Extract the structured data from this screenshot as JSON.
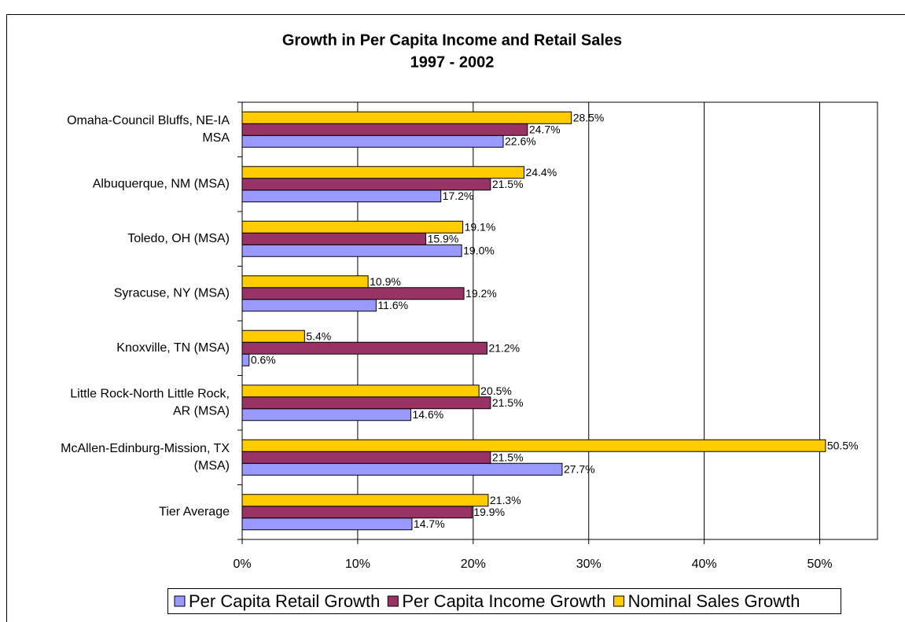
{
  "chart_data": {
    "type": "hbar",
    "title": "Growth in Per Capita Income and Retail Sales",
    "subtitle": "1997 - 2002",
    "categories": [
      "Omaha-Council Bluffs, NE-IA\nMSA",
      "Albuquerque, NM (MSA)",
      "Toledo, OH (MSA)",
      "Syracuse, NY (MSA)",
      "Knoxville, TN (MSA)",
      "Little Rock-North Little Rock,\nAR (MSA)",
      "McAllen-Edinburg-Mission, TX\n(MSA)",
      "Tier Average"
    ],
    "series": [
      {
        "name": "Per Capita Retail Growth",
        "color": "#9999ff",
        "values": [
          22.6,
          17.2,
          19.0,
          11.6,
          0.6,
          14.6,
          27.7,
          14.7
        ],
        "value_labels": [
          "22.6%",
          "17.2%",
          "19.0%",
          "11.6%",
          "0.6%",
          "14.6%",
          "27.7%",
          "14.7%"
        ]
      },
      {
        "name": "Per Capita Income Growth",
        "color": "#993366",
        "values": [
          24.7,
          21.5,
          15.9,
          19.2,
          21.2,
          21.5,
          21.5,
          19.9
        ],
        "value_labels": [
          "24.7%",
          "21.5%",
          "15.9%",
          "19.2%",
          "21.2%",
          "21.5%",
          "21.5%",
          "19.9%"
        ]
      },
      {
        "name": "Nominal Sales Growth",
        "color": "#ffcc00",
        "values": [
          28.5,
          24.4,
          19.1,
          10.9,
          5.4,
          20.5,
          50.5,
          21.3
        ],
        "value_labels": [
          "28.5%",
          "24.4%",
          "19.1%",
          "10.9%",
          "5.4%",
          "20.5%",
          "50.5%",
          "21.3%"
        ]
      }
    ],
    "xlim": [
      0,
      55
    ],
    "xticks": [
      {
        "value": 0,
        "label": "0%"
      },
      {
        "value": 10,
        "label": "10%"
      },
      {
        "value": 20,
        "label": "20%"
      },
      {
        "value": 30,
        "label": "30%"
      },
      {
        "value": 40,
        "label": "40%"
      },
      {
        "value": 50,
        "label": "50%"
      }
    ],
    "grid": true,
    "legend": "bottom"
  }
}
